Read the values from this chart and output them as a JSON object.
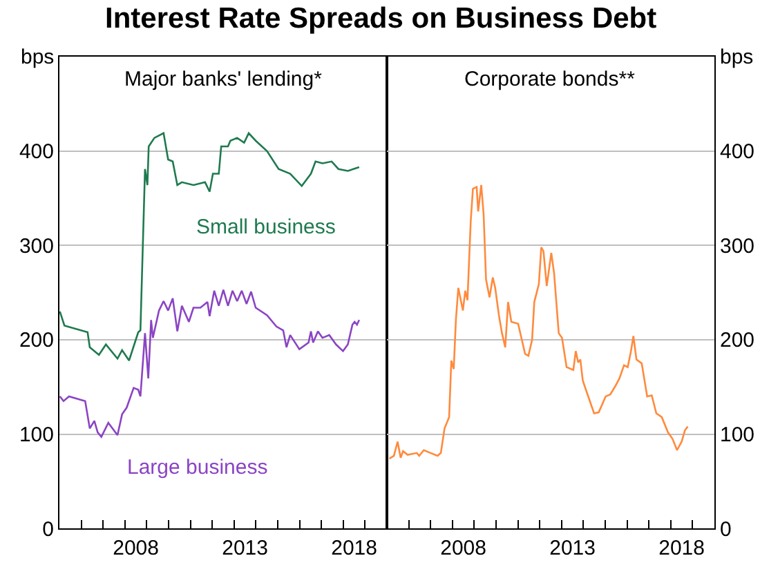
{
  "chart_data": [
    {
      "type": "line",
      "title": "Interest Rate Spreads on Business Debt",
      "subtitle": "Major banks' lending*",
      "ylabel": "bps",
      "xlim": [
        2005,
        2020
      ],
      "ylim": [
        0,
        500
      ],
      "yticks": [
        0,
        100,
        200,
        300,
        400
      ],
      "grid": "y",
      "legend": false,
      "xticks": [
        {
          "value": 2005,
          "label": null
        },
        {
          "value": 2006,
          "label": null
        },
        {
          "value": 2007,
          "label": null
        },
        {
          "value": 2008,
          "label": null
        },
        {
          "value": 2008.5,
          "label": "2008"
        },
        {
          "value": 2009,
          "label": null
        },
        {
          "value": 2010,
          "label": null
        },
        {
          "value": 2011,
          "label": null
        },
        {
          "value": 2012,
          "label": null
        },
        {
          "value": 2013,
          "label": null
        },
        {
          "value": 2013.5,
          "label": "2013"
        },
        {
          "value": 2014,
          "label": null
        },
        {
          "value": 2015,
          "label": null
        },
        {
          "value": 2016,
          "label": null
        },
        {
          "value": 2017,
          "label": null
        },
        {
          "value": 2018,
          "label": null
        },
        {
          "value": 2018.5,
          "label": "2018"
        },
        {
          "value": 2019,
          "label": null
        }
      ],
      "series": [
        {
          "name": "Small business",
          "color": "#1f7a4f",
          "x": [
            2005.02,
            2005.23,
            2006.29,
            2006.39,
            2006.81,
            2007.13,
            2007.66,
            2007.87,
            2008.19,
            2008.4,
            2008.61,
            2008.71,
            2008.92,
            2009.03,
            2009.09,
            2009.35,
            2009.77,
            2009.98,
            2010.19,
            2010.4,
            2010.61,
            2011.14,
            2011.67,
            2011.88,
            2012.03,
            2012.3,
            2012.41,
            2012.72,
            2012.83,
            2013.14,
            2013.46,
            2013.67,
            2013.99,
            2014.51,
            2015.04,
            2015.57,
            2016.1,
            2016.52,
            2016.73,
            2017.05,
            2017.47,
            2017.78,
            2018.21,
            2018.73
          ],
          "values": [
            230,
            215,
            208,
            192,
            184,
            195,
            180,
            189,
            178,
            193,
            208,
            210,
            381,
            364,
            405,
            414,
            419,
            391,
            389,
            364,
            367,
            364,
            367,
            357,
            376,
            376,
            405,
            405,
            411,
            414,
            409,
            419,
            411,
            400,
            381,
            376,
            363,
            376,
            389,
            387,
            389,
            381,
            379,
            383
          ]
        },
        {
          "name": "Large business",
          "color": "#8b44c4",
          "x": [
            2005.02,
            2005.19,
            2005.44,
            2006.18,
            2006.39,
            2006.6,
            2006.75,
            2006.92,
            2007.24,
            2007.66,
            2007.87,
            2008.08,
            2008.4,
            2008.61,
            2008.71,
            2008.92,
            2009.07,
            2009.2,
            2009.28,
            2009.56,
            2009.77,
            2009.98,
            2010.19,
            2010.4,
            2010.61,
            2010.93,
            2011.14,
            2011.46,
            2011.78,
            2011.88,
            2012.09,
            2012.3,
            2012.51,
            2012.72,
            2012.93,
            2013.14,
            2013.35,
            2013.57,
            2013.78,
            2013.99,
            2014.51,
            2014.94,
            2015.25,
            2015.4,
            2015.57,
            2015.99,
            2016.41,
            2016.52,
            2016.62,
            2016.84,
            2017.05,
            2017.36,
            2017.67,
            2017.99,
            2018.21,
            2018.42,
            2018.52,
            2018.63,
            2018.73
          ],
          "values": [
            140,
            135,
            140,
            135,
            106,
            114,
            102,
            97,
            112,
            99,
            121,
            128,
            149,
            147,
            140,
            207,
            159,
            221,
            202,
            231,
            241,
            231,
            244,
            209,
            236,
            219,
            234,
            234,
            240,
            225,
            252,
            236,
            253,
            236,
            252,
            241,
            252,
            238,
            251,
            234,
            226,
            214,
            210,
            192,
            205,
            190,
            197,
            209,
            197,
            209,
            202,
            205,
            195,
            188,
            195,
            216,
            219,
            216,
            221
          ]
        }
      ]
    },
    {
      "type": "line",
      "subtitle": "Corporate bonds**",
      "ylabel": "bps",
      "xlim": [
        2005,
        2020
      ],
      "ylim": [
        0,
        500
      ],
      "yticks": [
        0,
        100,
        200,
        300,
        400
      ],
      "grid": "y",
      "legend": false,
      "xticks": [
        {
          "value": 2005,
          "label": null
        },
        {
          "value": 2006,
          "label": null
        },
        {
          "value": 2007,
          "label": null
        },
        {
          "value": 2008,
          "label": null
        },
        {
          "value": 2008.5,
          "label": "2008"
        },
        {
          "value": 2009,
          "label": null
        },
        {
          "value": 2010,
          "label": null
        },
        {
          "value": 2011,
          "label": null
        },
        {
          "value": 2012,
          "label": null
        },
        {
          "value": 2013,
          "label": null
        },
        {
          "value": 2013.5,
          "label": "2013"
        },
        {
          "value": 2014,
          "label": null
        },
        {
          "value": 2015,
          "label": null
        },
        {
          "value": 2016,
          "label": null
        },
        {
          "value": 2017,
          "label": null
        },
        {
          "value": 2018,
          "label": null
        },
        {
          "value": 2018.5,
          "label": "2018"
        },
        {
          "value": 2019,
          "label": null
        }
      ],
      "series": [
        {
          "color": "#ff8a3d",
          "x": [
            2005.11,
            2005.32,
            2005.49,
            2005.63,
            2005.74,
            2005.95,
            2006.37,
            2006.48,
            2006.69,
            2007.0,
            2007.32,
            2007.47,
            2007.64,
            2007.85,
            2007.95,
            2008.06,
            2008.16,
            2008.27,
            2008.48,
            2008.59,
            2008.69,
            2008.84,
            2008.94,
            2009.11,
            2009.18,
            2009.32,
            2009.43,
            2009.54,
            2009.7,
            2009.85,
            2009.96,
            2010.13,
            2010.27,
            2010.42,
            2010.55,
            2010.7,
            2011.01,
            2011.33,
            2011.48,
            2011.65,
            2011.75,
            2011.96,
            2012.07,
            2012.17,
            2012.32,
            2012.53,
            2012.66,
            2012.87,
            2013.02,
            2013.23,
            2013.54,
            2013.65,
            2013.76,
            2013.86,
            2013.97,
            2014.07,
            2014.49,
            2014.7,
            2015.02,
            2015.23,
            2015.44,
            2015.65,
            2015.86,
            2016.03,
            2016.18,
            2016.29,
            2016.43,
            2016.67,
            2016.92,
            2017.13,
            2017.34,
            2017.59,
            2017.87,
            2018.08,
            2018.29,
            2018.5,
            2018.65,
            2018.78
          ],
          "values": [
            74,
            77,
            92,
            75,
            82,
            78,
            80,
            77,
            83,
            80,
            77,
            80,
            106,
            118,
            178,
            169,
            221,
            255,
            231,
            252,
            242,
            326,
            360,
            362,
            336,
            364,
            333,
            264,
            245,
            266,
            255,
            226,
            207,
            192,
            240,
            219,
            217,
            185,
            183,
            200,
            240,
            259,
            298,
            294,
            257,
            292,
            270,
            207,
            202,
            171,
            168,
            188,
            176,
            179,
            157,
            150,
            122,
            123,
            140,
            142,
            150,
            159,
            173,
            171,
            188,
            204,
            179,
            175,
            140,
            141,
            122,
            118,
            102,
            95,
            83,
            92,
            104,
            108
          ]
        }
      ]
    }
  ]
}
